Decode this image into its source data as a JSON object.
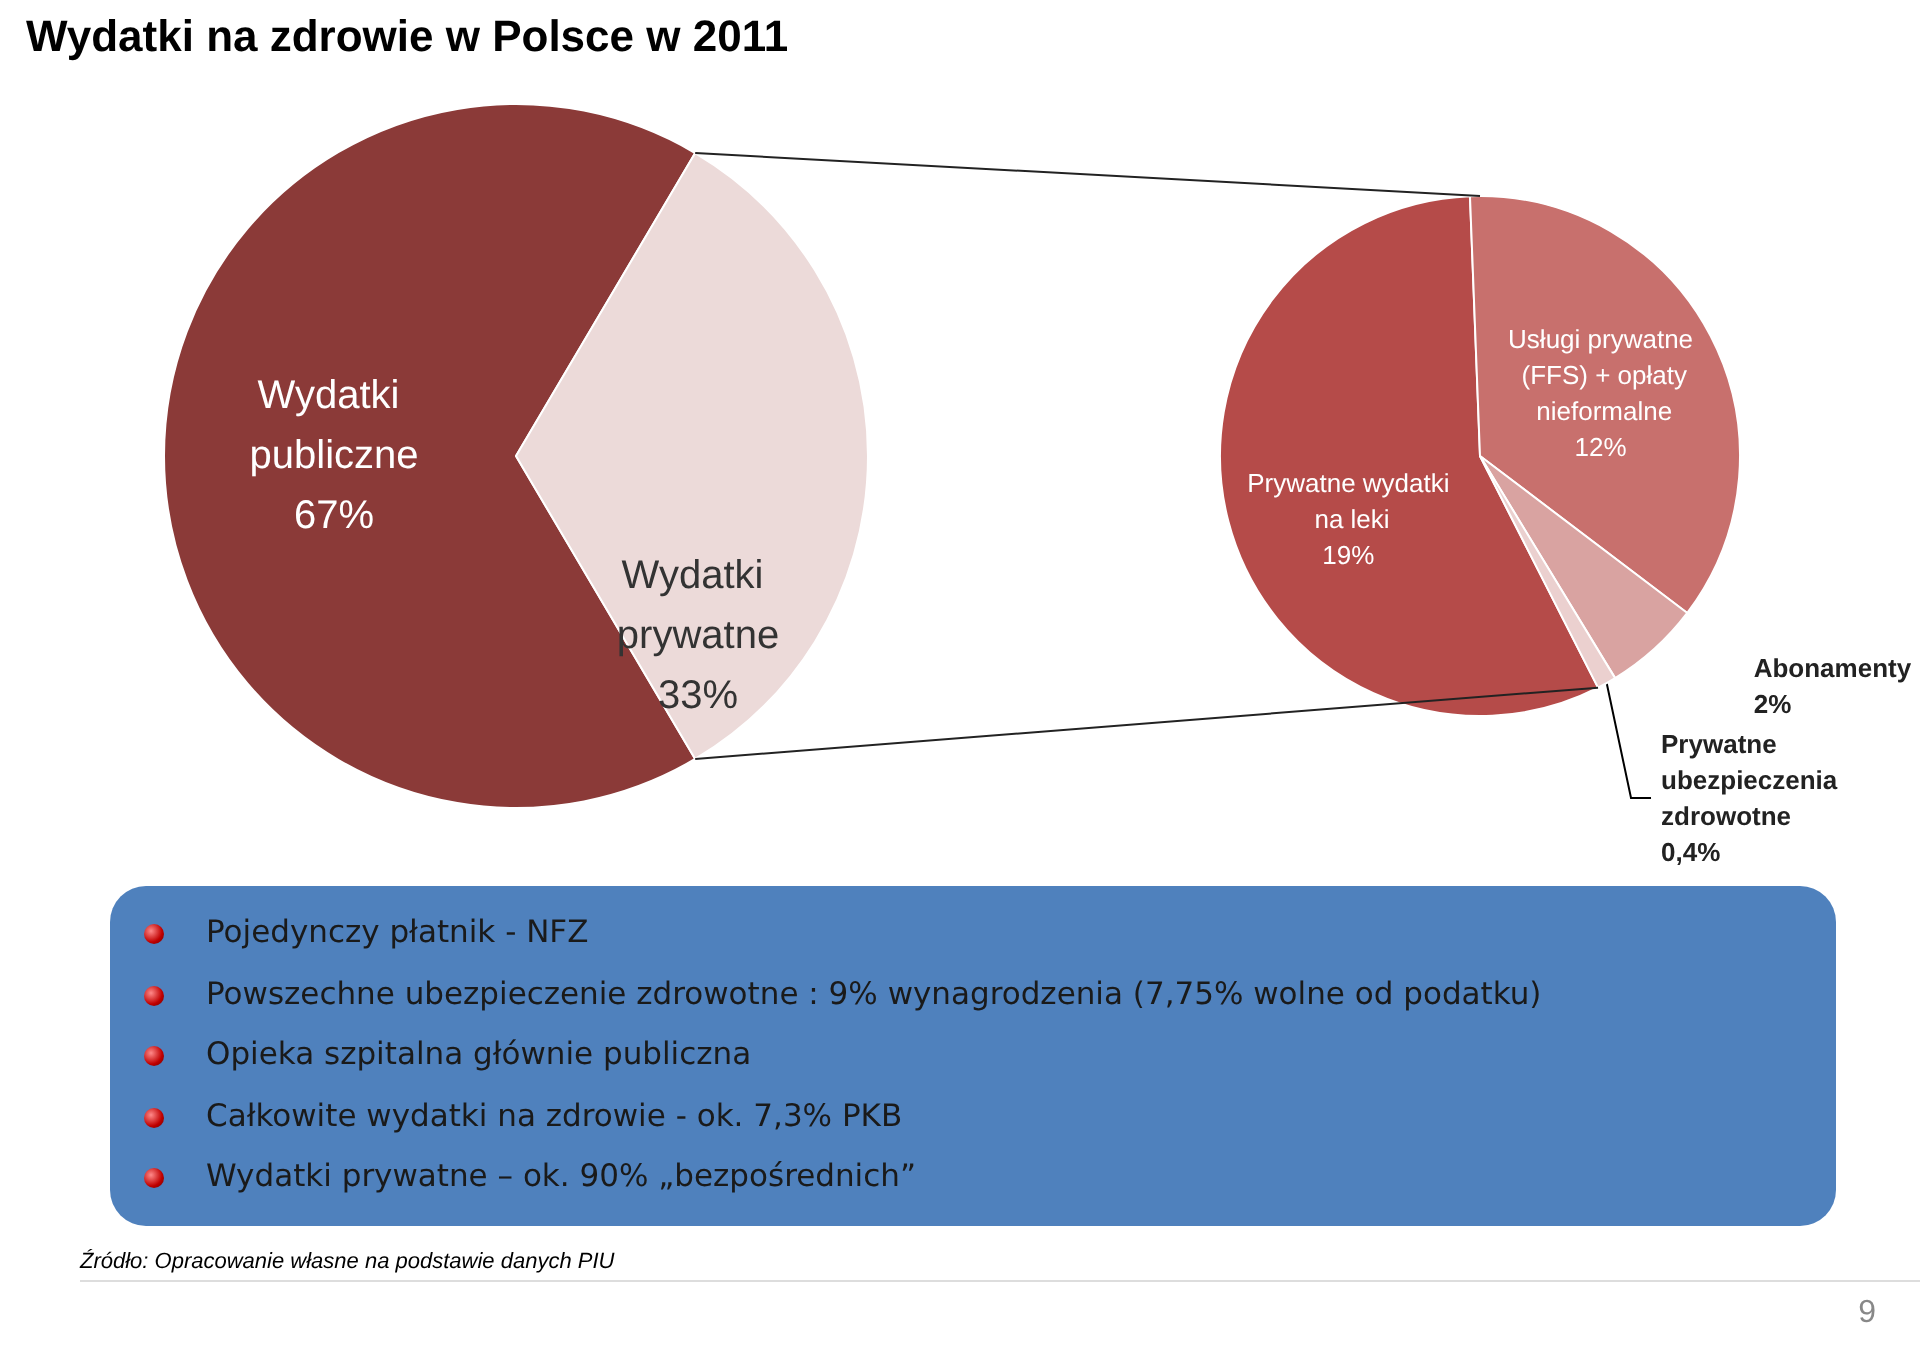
{
  "chart_data": [
    {
      "type": "pie",
      "title": "Wydatki na zdrowie w Polsce w 2011",
      "categories": [
        "Wydatki publiczne",
        "Wydatki prywatne"
      ],
      "values": [
        67,
        33
      ],
      "value_labels": [
        "67%",
        "33%"
      ],
      "colors": [
        "#8b3a38",
        "#ecdad9"
      ]
    },
    {
      "type": "pie",
      "categories": [
        "Prywatne wydatki na leki",
        "Usługi prywatne (FFS) + opłaty nieformalne",
        "Abonamenty",
        "Prywatne ubezpieczenia zdrowotne"
      ],
      "values": [
        19,
        12,
        2,
        0.4
      ],
      "value_labels": [
        "19%",
        "12%",
        "2%",
        "0,4%"
      ],
      "colors": [
        "#b54b49",
        "#c8706d",
        "#d9a3a1",
        "#ebd0cf"
      ]
    },
    {
      "type": "other",
      "annotations": [
        "Pojedynczy płatnik - NFZ",
        "Powszechne ubezpieczenie zdrowotne : 9% wynagrodzenia (7,75%  wolne od podatku)",
        "Opieka szpitalna głównie publiczna",
        "Całkowite wydatki na zdrowie -  ok. 7,3%  PKB",
        "Wydatki prywatne – ok.  90% „bezpośrednich”",
        "Źródło: Opracowanie własne na podstawie danych PIU",
        "9"
      ]
    }
  ]
}
